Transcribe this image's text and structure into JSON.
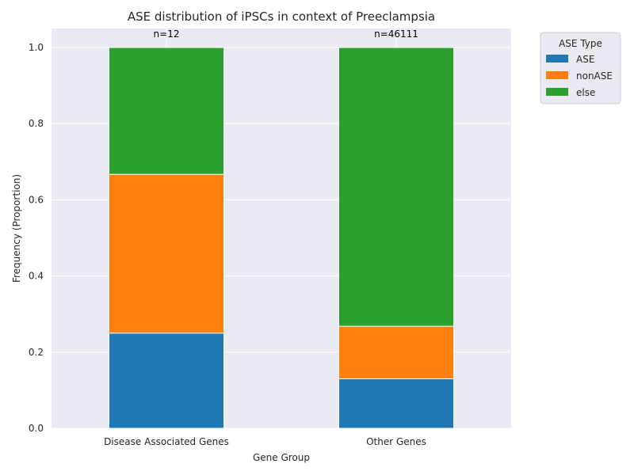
{
  "chart_data": {
    "type": "bar",
    "stacked": true,
    "title": "ASE distribution of iPSCs in context of Preeclampsia",
    "xlabel": "Gene Group",
    "ylabel": "Frequency (Proportion)",
    "ylim": [
      0,
      1.05
    ],
    "yticks": [
      "0.0",
      "0.2",
      "0.4",
      "0.6",
      "0.8",
      "1.0"
    ],
    "categories": [
      "Disease Associated Genes",
      "Other Genes"
    ],
    "annotations": [
      "n=12",
      "n=46111"
    ],
    "series": [
      {
        "name": "ASE",
        "color": "#1f77b4",
        "values": [
          0.25,
          0.13
        ]
      },
      {
        "name": "nonASE",
        "color": "#ff7f0e",
        "values": [
          0.417,
          0.138
        ]
      },
      {
        "name": "else",
        "color": "#2ca02c",
        "values": [
          0.333,
          0.732
        ]
      }
    ],
    "legend": {
      "title": "ASE Type",
      "placement": "outside-top-right"
    },
    "grid": true,
    "background": "#eaeaf2"
  }
}
